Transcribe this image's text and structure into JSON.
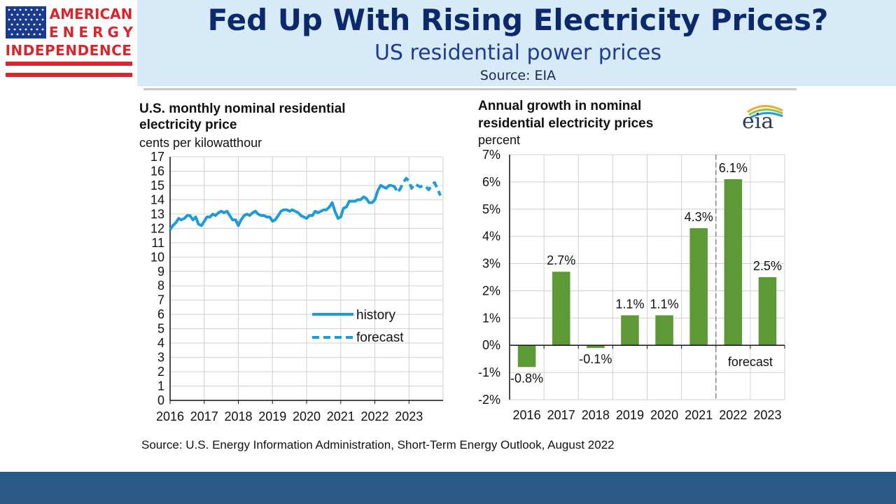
{
  "header": {
    "logo_line1": "AMERICAN",
    "logo_line2": "ENERGY",
    "logo_line3": "INDEPENDENCE",
    "title": "Fed Up With Rising Electricity Prices?",
    "subtitle": "US residential power prices",
    "source": "Source: EIA"
  },
  "eia_logo_text": "eia",
  "bottom_source": "Source: U.S. Energy Information Administration, Short-Term Energy Outlook, August 2022",
  "colors": {
    "header_bg": "#d6eaf8",
    "title": "#0c2a6b",
    "line_series": "#1f9bd7",
    "bar": "#5d9a36",
    "footer_bar": "#2c5a86",
    "logo_red": "#d7262d",
    "logo_blue": "#1a3a8f"
  },
  "chart_data": [
    {
      "type": "line",
      "title": "U.S. monthly nominal residential electricity price",
      "title_lines": [
        "U.S. monthly nominal residential",
        "electricity price"
      ],
      "ylabel": "cents per kilowatthour",
      "ylim": [
        0,
        17
      ],
      "yticks": [
        "0",
        "1",
        "2",
        "3",
        "4",
        "5",
        "6",
        "7",
        "8",
        "9",
        "10",
        "11",
        "12",
        "13",
        "14",
        "15",
        "16",
        "17"
      ],
      "xlim": [
        2016,
        2024
      ],
      "xticks": [
        "2016",
        "2017",
        "2018",
        "2019",
        "2020",
        "2021",
        "2022",
        "2023"
      ],
      "grid": true,
      "legend": {
        "placement": "bottom-right",
        "history": "history",
        "forecast": "forecast"
      },
      "series": [
        {
          "name": "history",
          "style": "solid",
          "points": [
            [
              2016.0,
              11.9
            ],
            [
              2016.08,
              12.2
            ],
            [
              2016.17,
              12.4
            ],
            [
              2016.25,
              12.7
            ],
            [
              2016.33,
              12.6
            ],
            [
              2016.42,
              12.7
            ],
            [
              2016.5,
              12.9
            ],
            [
              2016.58,
              12.9
            ],
            [
              2016.67,
              12.6
            ],
            [
              2016.75,
              12.8
            ],
            [
              2016.83,
              12.3
            ],
            [
              2016.92,
              12.2
            ],
            [
              2017.0,
              12.5
            ],
            [
              2017.08,
              12.8
            ],
            [
              2017.17,
              12.8
            ],
            [
              2017.25,
              13.0
            ],
            [
              2017.33,
              12.9
            ],
            [
              2017.42,
              13.1
            ],
            [
              2017.5,
              13.2
            ],
            [
              2017.58,
              13.1
            ],
            [
              2017.67,
              13.2
            ],
            [
              2017.75,
              12.9
            ],
            [
              2017.83,
              12.6
            ],
            [
              2017.92,
              12.6
            ],
            [
              2018.0,
              12.2
            ],
            [
              2018.08,
              12.6
            ],
            [
              2018.17,
              12.9
            ],
            [
              2018.25,
              13.0
            ],
            [
              2018.33,
              12.9
            ],
            [
              2018.42,
              13.1
            ],
            [
              2018.5,
              13.2
            ],
            [
              2018.58,
              13.0
            ],
            [
              2018.67,
              12.9
            ],
            [
              2018.75,
              12.9
            ],
            [
              2018.83,
              12.8
            ],
            [
              2018.92,
              12.8
            ],
            [
              2019.0,
              12.5
            ],
            [
              2019.08,
              12.6
            ],
            [
              2019.17,
              12.9
            ],
            [
              2019.25,
              13.2
            ],
            [
              2019.33,
              13.3
            ],
            [
              2019.42,
              13.3
            ],
            [
              2019.5,
              13.2
            ],
            [
              2019.58,
              13.3
            ],
            [
              2019.67,
              13.2
            ],
            [
              2019.75,
              13.1
            ],
            [
              2019.83,
              12.9
            ],
            [
              2019.92,
              12.8
            ],
            [
              2020.0,
              12.7
            ],
            [
              2020.08,
              12.9
            ],
            [
              2020.17,
              12.9
            ],
            [
              2020.25,
              13.2
            ],
            [
              2020.33,
              13.1
            ],
            [
              2020.42,
              13.2
            ],
            [
              2020.5,
              13.3
            ],
            [
              2020.58,
              13.3
            ],
            [
              2020.67,
              13.5
            ],
            [
              2020.75,
              13.8
            ],
            [
              2020.83,
              13.2
            ],
            [
              2020.92,
              12.7
            ],
            [
              2021.0,
              12.8
            ],
            [
              2021.08,
              13.4
            ],
            [
              2021.17,
              13.5
            ],
            [
              2021.25,
              13.9
            ],
            [
              2021.33,
              13.9
            ],
            [
              2021.42,
              13.9
            ],
            [
              2021.5,
              14.0
            ],
            [
              2021.58,
              14.0
            ],
            [
              2021.67,
              14.2
            ],
            [
              2021.75,
              14.1
            ],
            [
              2021.83,
              13.8
            ],
            [
              2021.92,
              13.8
            ],
            [
              2022.0,
              14.0
            ],
            [
              2022.08,
              14.6
            ],
            [
              2022.17,
              15.0
            ],
            [
              2022.25,
              14.9
            ],
            [
              2022.33,
              14.8
            ],
            [
              2022.42,
              15.0
            ],
            [
              2022.5,
              15.0
            ]
          ]
        },
        {
          "name": "forecast",
          "style": "dashed",
          "points": [
            [
              2022.5,
              15.0
            ],
            [
              2022.58,
              14.9
            ],
            [
              2022.67,
              14.5
            ],
            [
              2022.75,
              14.8
            ],
            [
              2022.83,
              15.2
            ],
            [
              2022.92,
              15.5
            ],
            [
              2023.0,
              15.3
            ],
            [
              2023.08,
              14.8
            ],
            [
              2023.17,
              15.1
            ],
            [
              2023.25,
              15.0
            ],
            [
              2023.33,
              14.9
            ],
            [
              2023.42,
              15.0
            ],
            [
              2023.5,
              14.9
            ],
            [
              2023.58,
              14.7
            ],
            [
              2023.67,
              15.0
            ],
            [
              2023.75,
              15.2
            ],
            [
              2023.83,
              14.8
            ],
            [
              2023.92,
              14.3
            ]
          ]
        }
      ]
    },
    {
      "type": "bar",
      "title": "Annual growth in nominal residential electricity prices",
      "title_lines": [
        "Annual growth in nominal",
        "residential electricity prices"
      ],
      "ylabel": "percent",
      "ylim": [
        -2,
        7
      ],
      "yticks": [
        "-2%",
        "-1%",
        "0%",
        "1%",
        "2%",
        "3%",
        "4%",
        "5%",
        "6%",
        "7%"
      ],
      "categories": [
        "2016",
        "2017",
        "2018",
        "2019",
        "2020",
        "2021",
        "2022",
        "2023"
      ],
      "values": [
        -0.8,
        2.7,
        -0.1,
        1.1,
        1.1,
        4.3,
        6.1,
        2.5
      ],
      "data_labels": [
        "-0.8%",
        "2.7%",
        "-0.1%",
        "1.1%",
        "1.1%",
        "4.3%",
        "6.1%",
        "2.5%"
      ],
      "forecast_label": "forecast",
      "grid": true
    }
  ]
}
